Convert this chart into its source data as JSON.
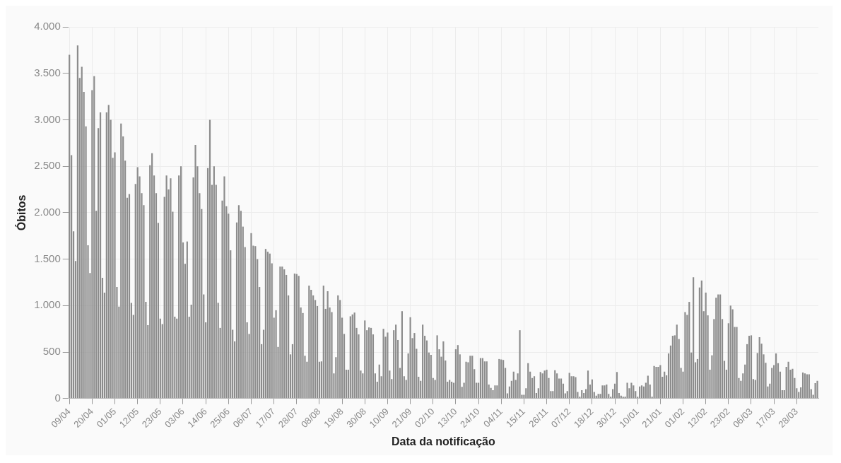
{
  "chart_data": {
    "type": "bar",
    "xlabel": "Data da notificação",
    "ylabel": "Óbitos",
    "color": "#8c8c8c",
    "grid": true,
    "ylim": [
      0,
      4000
    ],
    "yticks": [
      {
        "value": 0,
        "label": "0"
      },
      {
        "value": 500,
        "label": "500"
      },
      {
        "value": 1000,
        "label": "1.000"
      },
      {
        "value": 1500,
        "label": "1.500"
      },
      {
        "value": 2000,
        "label": "2.000"
      },
      {
        "value": 2500,
        "label": "2.500"
      },
      {
        "value": 3000,
        "label": "3.000"
      },
      {
        "value": 3500,
        "label": "3.500"
      },
      {
        "value": 4000,
        "label": "4.000"
      }
    ],
    "categories": [
      "09/04",
      null,
      null,
      null,
      null,
      null,
      null,
      null,
      null,
      null,
      null,
      "20/04",
      null,
      null,
      null,
      null,
      null,
      null,
      null,
      null,
      null,
      null,
      "01/05",
      null,
      null,
      null,
      null,
      null,
      null,
      null,
      null,
      null,
      null,
      "12/05",
      null,
      null,
      null,
      null,
      null,
      null,
      null,
      null,
      null,
      null,
      "23/05",
      null,
      null,
      null,
      null,
      null,
      null,
      null,
      null,
      null,
      null,
      "03/06",
      null,
      null,
      null,
      null,
      null,
      null,
      null,
      null,
      null,
      null,
      "14/06",
      null,
      null,
      null,
      null,
      null,
      null,
      null,
      null,
      null,
      null,
      "25/06",
      null,
      null,
      null,
      null,
      null,
      null,
      null,
      null,
      null,
      null,
      "06/07",
      null,
      null,
      null,
      null,
      null,
      null,
      null,
      null,
      null,
      null,
      "17/07",
      null,
      null,
      null,
      null,
      null,
      null,
      null,
      null,
      null,
      null,
      "28/07",
      null,
      null,
      null,
      null,
      null,
      null,
      null,
      null,
      null,
      null,
      "08/08",
      null,
      null,
      null,
      null,
      null,
      null,
      null,
      null,
      null,
      null,
      "19/08",
      null,
      null,
      null,
      null,
      null,
      null,
      null,
      null,
      null,
      null,
      "30/08",
      null,
      null,
      null,
      null,
      null,
      null,
      null,
      null,
      null,
      null,
      "10/09",
      null,
      null,
      null,
      null,
      null,
      null,
      null,
      null,
      null,
      null,
      "21/09",
      null,
      null,
      null,
      null,
      null,
      null,
      null,
      null,
      null,
      null,
      "02/10",
      null,
      null,
      null,
      null,
      null,
      null,
      null,
      null,
      null,
      null,
      "13/10",
      null,
      null,
      null,
      null,
      null,
      null,
      null,
      null,
      null,
      null,
      "24/10",
      null,
      null,
      null,
      null,
      null,
      null,
      null,
      null,
      null,
      null,
      "04/11",
      null,
      null,
      null,
      null,
      null,
      null,
      null,
      null,
      null,
      null,
      "15/11",
      null,
      null,
      null,
      null,
      null,
      null,
      null,
      null,
      null,
      null,
      "26/11",
      null,
      null,
      null,
      null,
      null,
      null,
      null,
      null,
      null,
      null,
      "07/12",
      null,
      null,
      null,
      null,
      null,
      null,
      null,
      null,
      null,
      null,
      "18/12",
      null,
      null,
      null,
      null,
      null,
      null,
      null,
      null,
      null,
      null,
      "30/12",
      null,
      null,
      null,
      null,
      null,
      null,
      null,
      null,
      null,
      null,
      "10/01",
      null,
      null,
      null,
      null,
      null,
      null,
      null,
      null,
      null,
      null,
      "21/01",
      null,
      null,
      null,
      null,
      null,
      null,
      null,
      null,
      null,
      null,
      "01/02",
      null,
      null,
      null,
      null,
      null,
      null,
      null,
      null,
      null,
      null,
      "12/02",
      null,
      null,
      null,
      null,
      null,
      null,
      null,
      null,
      null,
      null,
      "23/02",
      null,
      null,
      null,
      null,
      null,
      null,
      null,
      null,
      null,
      null,
      "06/03",
      null,
      null,
      null,
      null,
      null,
      null,
      null,
      null,
      null,
      null,
      "17/03",
      null,
      null,
      null,
      null,
      null,
      null,
      null,
      null,
      null,
      null,
      "28/03",
      null,
      null,
      null,
      null,
      null,
      null,
      null,
      null,
      null,
      null
    ],
    "values": [
      3700,
      2620,
      1800,
      1480,
      3800,
      3450,
      3570,
      3300,
      2930,
      1650,
      1350,
      3320,
      3470,
      2020,
      2910,
      3080,
      1300,
      1140,
      3080,
      3160,
      3000,
      2590,
      2650,
      1200,
      990,
      2960,
      2820,
      2560,
      2160,
      2200,
      1030,
      900,
      2310,
      2490,
      2390,
      2210,
      2080,
      1040,
      790,
      2510,
      2640,
      2400,
      2210,
      1890,
      860,
      800,
      2170,
      2400,
      2250,
      2370,
      2010,
      880,
      860,
      2400,
      2500,
      1680,
      1450,
      1690,
      880,
      1010,
      2380,
      2730,
      2500,
      2210,
      2040,
      1120,
      820,
      2480,
      3000,
      2300,
      2500,
      2300,
      1030,
      760,
      2130,
      2390,
      2070,
      1990,
      1595,
      740,
      615,
      1895,
      2080,
      2020,
      1850,
      1630,
      820,
      695,
      1780,
      1645,
      1640,
      1500,
      1200,
      585,
      740,
      1610,
      1580,
      1560,
      1455,
      870,
      950,
      555,
      1420,
      1420,
      1390,
      1330,
      1110,
      475,
      585,
      1345,
      1340,
      1320,
      980,
      920,
      460,
      395,
      1215,
      1170,
      1110,
      1060,
      995,
      395,
      400,
      1215,
      965,
      1155,
      980,
      930,
      270,
      445,
      1110,
      1060,
      870,
      695,
      310,
      310,
      885,
      905,
      925,
      760,
      690,
      300,
      270,
      840,
      735,
      765,
      760,
      690,
      270,
      180,
      365,
      240,
      750,
      665,
      710,
      300,
      210,
      735,
      795,
      630,
      330,
      940,
      240,
      200,
      485,
      875,
      650,
      705,
      535,
      235,
      190,
      795,
      675,
      625,
      495,
      470,
      220,
      200,
      680,
      530,
      450,
      615,
      410,
      180,
      200,
      180,
      170,
      530,
      575,
      475,
      125,
      170,
      395,
      390,
      460,
      460,
      315,
      170,
      170,
      435,
      435,
      400,
      400,
      150,
      115,
      90,
      140,
      140,
      425,
      420,
      415,
      330,
      55,
      130,
      190,
      290,
      200,
      270,
      735,
      40,
      40,
      110,
      380,
      290,
      220,
      240,
      60,
      110,
      285,
      270,
      300,
      310,
      220,
      80,
      80,
      305,
      270,
      215,
      215,
      160,
      55,
      80,
      275,
      240,
      240,
      230,
      70,
      20,
      90,
      60,
      100,
      300,
      150,
      205,
      70,
      30,
      50,
      50,
      140,
      140,
      150,
      50,
      20,
      100,
      160,
      285,
      60,
      30,
      20,
      20,
      170,
      110,
      170,
      140,
      80,
      20,
      130,
      140,
      130,
      170,
      245,
      150,
      20,
      350,
      340,
      340,
      360,
      235,
      290,
      250,
      485,
      570,
      675,
      680,
      795,
      640,
      330,
      290,
      930,
      900,
      1040,
      495,
      1305,
      390,
      425,
      1195,
      1270,
      940,
      1140,
      895,
      310,
      465,
      855,
      1085,
      1120,
      1120,
      855,
      405,
      310,
      810,
      1000,
      960,
      770,
      770,
      220,
      190,
      270,
      365,
      585,
      675,
      680,
      210,
      200,
      490,
      660,
      590,
      475,
      385,
      130,
      160,
      330,
      360,
      485,
      380,
      290,
      90,
      90,
      340,
      395,
      310,
      320,
      220,
      110,
      70,
      120,
      280,
      270,
      260,
      260,
      100,
      40,
      165,
      190
    ]
  }
}
